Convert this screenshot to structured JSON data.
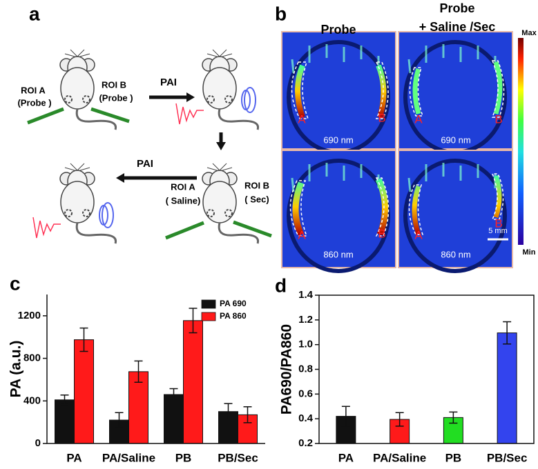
{
  "panel_labels": [
    "a",
    "b",
    "c",
    "d"
  ],
  "diagram": {
    "roi_labels": [
      "ROI A",
      "(Probe )",
      "ROI B",
      "(Probe )",
      "ROI A",
      "( Saline)",
      "ROI B",
      "( Sec)"
    ],
    "arrow_labels": [
      "PAI",
      "PAI"
    ]
  },
  "images": {
    "column_titles": [
      "Probe",
      "Probe",
      "+ Saline /Sec"
    ],
    "wavelength_labels": [
      "690 nm",
      "690 nm",
      "860 nm",
      "860 nm"
    ],
    "region_labels": [
      "A",
      "B",
      "A",
      "B",
      "A",
      "B",
      "A",
      "B"
    ],
    "colorbar": {
      "max": "Max",
      "min": "Min"
    },
    "scale_bar": "5 mm"
  },
  "chart_data": [
    {
      "type": "bar",
      "ylabel": "PA  (a.u.)",
      "categories": [
        "PA",
        "PA/Saline",
        "PB",
        "PB/Sec"
      ],
      "series": [
        {
          "name": "PA 690",
          "color": "#111111",
          "values": [
            410,
            220,
            460,
            300
          ],
          "errors": [
            45,
            70,
            55,
            75
          ]
        },
        {
          "name": "PA 860",
          "color": "#ff1a1a",
          "values": [
            975,
            675,
            1155,
            270
          ],
          "errors": [
            110,
            100,
            115,
            75
          ]
        }
      ],
      "ylim": [
        0,
        1400
      ],
      "yticks": [
        0,
        400,
        800,
        1200
      ],
      "legend": "upper right",
      "box": false
    },
    {
      "type": "bar",
      "ylabel": "PA690/PA860",
      "categories": [
        "PA",
        "PA/Saline",
        "PB",
        "PB/Sec"
      ],
      "values": [
        0.42,
        0.395,
        0.41,
        1.095
      ],
      "errors": [
        0.08,
        0.055,
        0.045,
        0.09
      ],
      "colors": [
        "#111111",
        "#ff1a1a",
        "#22dd22",
        "#3344ee"
      ],
      "ylim": [
        0.2,
        1.4
      ],
      "yticks": [
        0.2,
        0.4,
        0.6,
        0.8,
        {
          "value": 1,
          "label": "1.0"
        },
        1.2,
        1.4
      ],
      "box": true
    }
  ]
}
